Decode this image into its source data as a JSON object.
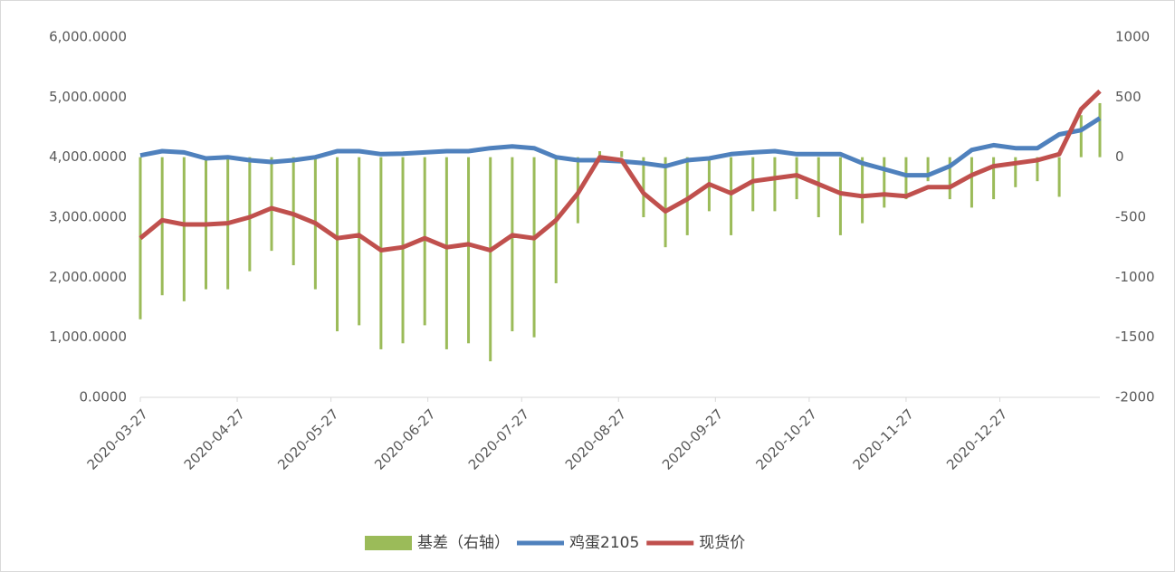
{
  "chart_data": {
    "type": "bar-line",
    "x": [
      "2020-03-27",
      "2020-04-03",
      "2020-04-10",
      "2020-04-17",
      "2020-04-24",
      "2020-05-01",
      "2020-05-08",
      "2020-05-15",
      "2020-05-22",
      "2020-05-29",
      "2020-06-05",
      "2020-06-12",
      "2020-06-19",
      "2020-06-26",
      "2020-07-03",
      "2020-07-10",
      "2020-07-17",
      "2020-07-24",
      "2020-07-31",
      "2020-08-07",
      "2020-08-14",
      "2020-08-21",
      "2020-08-28",
      "2020-09-04",
      "2020-09-11",
      "2020-09-18",
      "2020-09-25",
      "2020-10-02",
      "2020-10-09",
      "2020-10-16",
      "2020-10-23",
      "2020-10-30",
      "2020-11-06",
      "2020-11-13",
      "2020-11-20",
      "2020-11-27",
      "2020-12-04",
      "2020-12-11",
      "2020-12-18",
      "2020-12-25",
      "2021-01-01",
      "2021-01-08",
      "2021-01-15",
      "2021-01-22",
      "2021-01-28"
    ],
    "series": [
      {
        "name": "基差（右轴）",
        "color": "#9bbb59",
        "kind": "bar",
        "axis": "y2",
        "values": [
          -1350,
          -1150,
          -1200,
          -1100,
          -1100,
          -950,
          -780,
          -900,
          -1100,
          -1450,
          -1400,
          -1600,
          -1550,
          -1400,
          -1600,
          -1550,
          -1700,
          -1450,
          -1500,
          -1050,
          -550,
          50,
          50,
          -500,
          -750,
          -650,
          -450,
          -650,
          -450,
          -450,
          -350,
          -500,
          -650,
          -550,
          -420,
          -350,
          -200,
          -350,
          -420,
          -350,
          -250,
          -200,
          -330,
          350,
          450
        ]
      },
      {
        "name": "鸡蛋2105",
        "color": "#4f81bd",
        "kind": "line",
        "values": [
          4030,
          4100,
          4080,
          3980,
          4000,
          3950,
          3920,
          3950,
          4000,
          4100,
          4100,
          4050,
          4060,
          4080,
          4100,
          4100,
          4150,
          4180,
          4150,
          4000,
          3950,
          3950,
          3930,
          3900,
          3850,
          3950,
          3980,
          4050,
          4080,
          4100,
          4050,
          4050,
          4050,
          3900,
          3800,
          3700,
          3700,
          3850,
          4120,
          4200,
          4150,
          4150,
          4380,
          4450,
          4650
        ]
      },
      {
        "name": "现货价",
        "color": "#c0504d",
        "kind": "line",
        "values": [
          2650,
          2950,
          2880,
          2880,
          2900,
          3000,
          3150,
          3050,
          2900,
          2650,
          2700,
          2450,
          2500,
          2650,
          2500,
          2550,
          2450,
          2700,
          2650,
          2950,
          3400,
          4000,
          3950,
          3400,
          3100,
          3300,
          3550,
          3400,
          3600,
          3650,
          3700,
          3550,
          3400,
          3350,
          3380,
          3350,
          3500,
          3500,
          3700,
          3850,
          3900,
          3950,
          4050,
          4800,
          5100
        ]
      }
    ],
    "xlim": [
      "2020-03-27",
      "2021-01-28"
    ],
    "xticks": [
      "2020-03-27",
      "2020-04-27",
      "2020-05-27",
      "2020-06-27",
      "2020-07-27",
      "2020-08-27",
      "2020-09-27",
      "2020-10-27",
      "2020-11-27",
      "2020-12-27"
    ],
    "ylim": [
      0,
      6000
    ],
    "yticks": [
      {
        "value": 0,
        "label": "0.0000"
      },
      {
        "value": 1000,
        "label": "1,000.0000"
      },
      {
        "value": 2000,
        "label": "2,000.0000"
      },
      {
        "value": 3000,
        "label": "3,000.0000"
      },
      {
        "value": 4000,
        "label": "4,000.0000"
      },
      {
        "value": 5000,
        "label": "5,000.0000"
      },
      {
        "value": 6000,
        "label": "6,000.0000"
      }
    ],
    "y2lim": [
      -2000,
      1000
    ],
    "y2ticks": [
      -2000,
      -1500,
      -1000,
      -500,
      0,
      500,
      1000
    ],
    "grid": false
  }
}
